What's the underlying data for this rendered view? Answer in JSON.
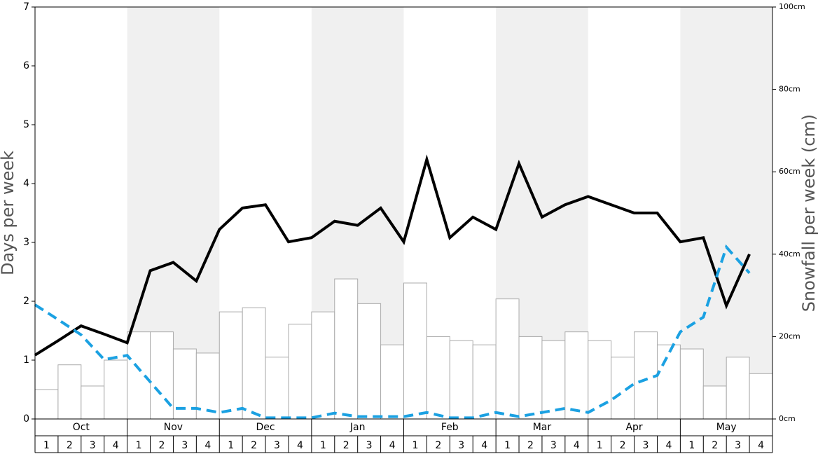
{
  "chart_data": {
    "type": "combo",
    "ylabel": "Days per week",
    "y2label": "Snowfall per week (cm)",
    "months": [
      "Oct",
      "Nov",
      "Dec",
      "Jan",
      "Feb",
      "Mar",
      "Apr",
      "May"
    ],
    "categories": [
      "1",
      "2",
      "3",
      "4",
      "1",
      "2",
      "3",
      "4",
      "1",
      "2",
      "3",
      "4",
      "1",
      "2",
      "3",
      "4",
      "1",
      "2",
      "3",
      "4",
      "1",
      "2",
      "3",
      "4",
      "1",
      "2",
      "3",
      "4",
      "1",
      "2",
      "3",
      "4"
    ],
    "ylim": [
      0,
      7
    ],
    "yticks": [
      0,
      1,
      2,
      3,
      4,
      5,
      6,
      7
    ],
    "y2lim": [
      0,
      100
    ],
    "y2ticks": [
      {
        "value": 0,
        "label": "0cm"
      },
      {
        "value": 20,
        "label": "20cm"
      },
      {
        "value": 40,
        "label": "40cm"
      },
      {
        "value": 60,
        "label": "60cm"
      },
      {
        "value": 80,
        "label": "80cm"
      },
      {
        "value": 100,
        "label": "100cm"
      }
    ],
    "series": [
      {
        "type": "bar",
        "color": "#ffffff",
        "values": [
          0.5,
          0.92,
          0.56,
          1.0,
          1.48,
          1.48,
          1.19,
          1.12,
          1.82,
          1.89,
          1.05,
          1.61,
          1.82,
          2.38,
          1.96,
          1.26,
          2.31,
          1.4,
          1.33,
          1.26,
          2.04,
          1.4,
          1.33,
          1.48,
          1.33,
          1.05,
          1.48,
          1.26,
          1.19,
          0.56,
          1.05,
          0.77
        ]
      },
      {
        "type": "line",
        "axis": "y2",
        "color": "#000000",
        "values": [
          15.5,
          19,
          22.6,
          20.6,
          18.5,
          36,
          38,
          33.5,
          46,
          51.2,
          52,
          43,
          44,
          48,
          47,
          51.2,
          43,
          63,
          44,
          49,
          46,
          62,
          49,
          52,
          54,
          52,
          50,
          50,
          43,
          44,
          27.5,
          40
        ]
      },
      {
        "type": "line",
        "dashed": true,
        "color": "#1ba1e2",
        "values": [
          1.94,
          1.69,
          1.43,
          1.01,
          1.08,
          0.63,
          0.18,
          0.18,
          0.11,
          0.18,
          0.02,
          0.02,
          0.02,
          0.1,
          0.04,
          0.04,
          0.04,
          0.11,
          0.02,
          0.02,
          0.11,
          0.04,
          0.11,
          0.18,
          0.11,
          0.32,
          0.6,
          0.74,
          1.48,
          1.73,
          2.92,
          2.48
        ]
      }
    ]
  }
}
